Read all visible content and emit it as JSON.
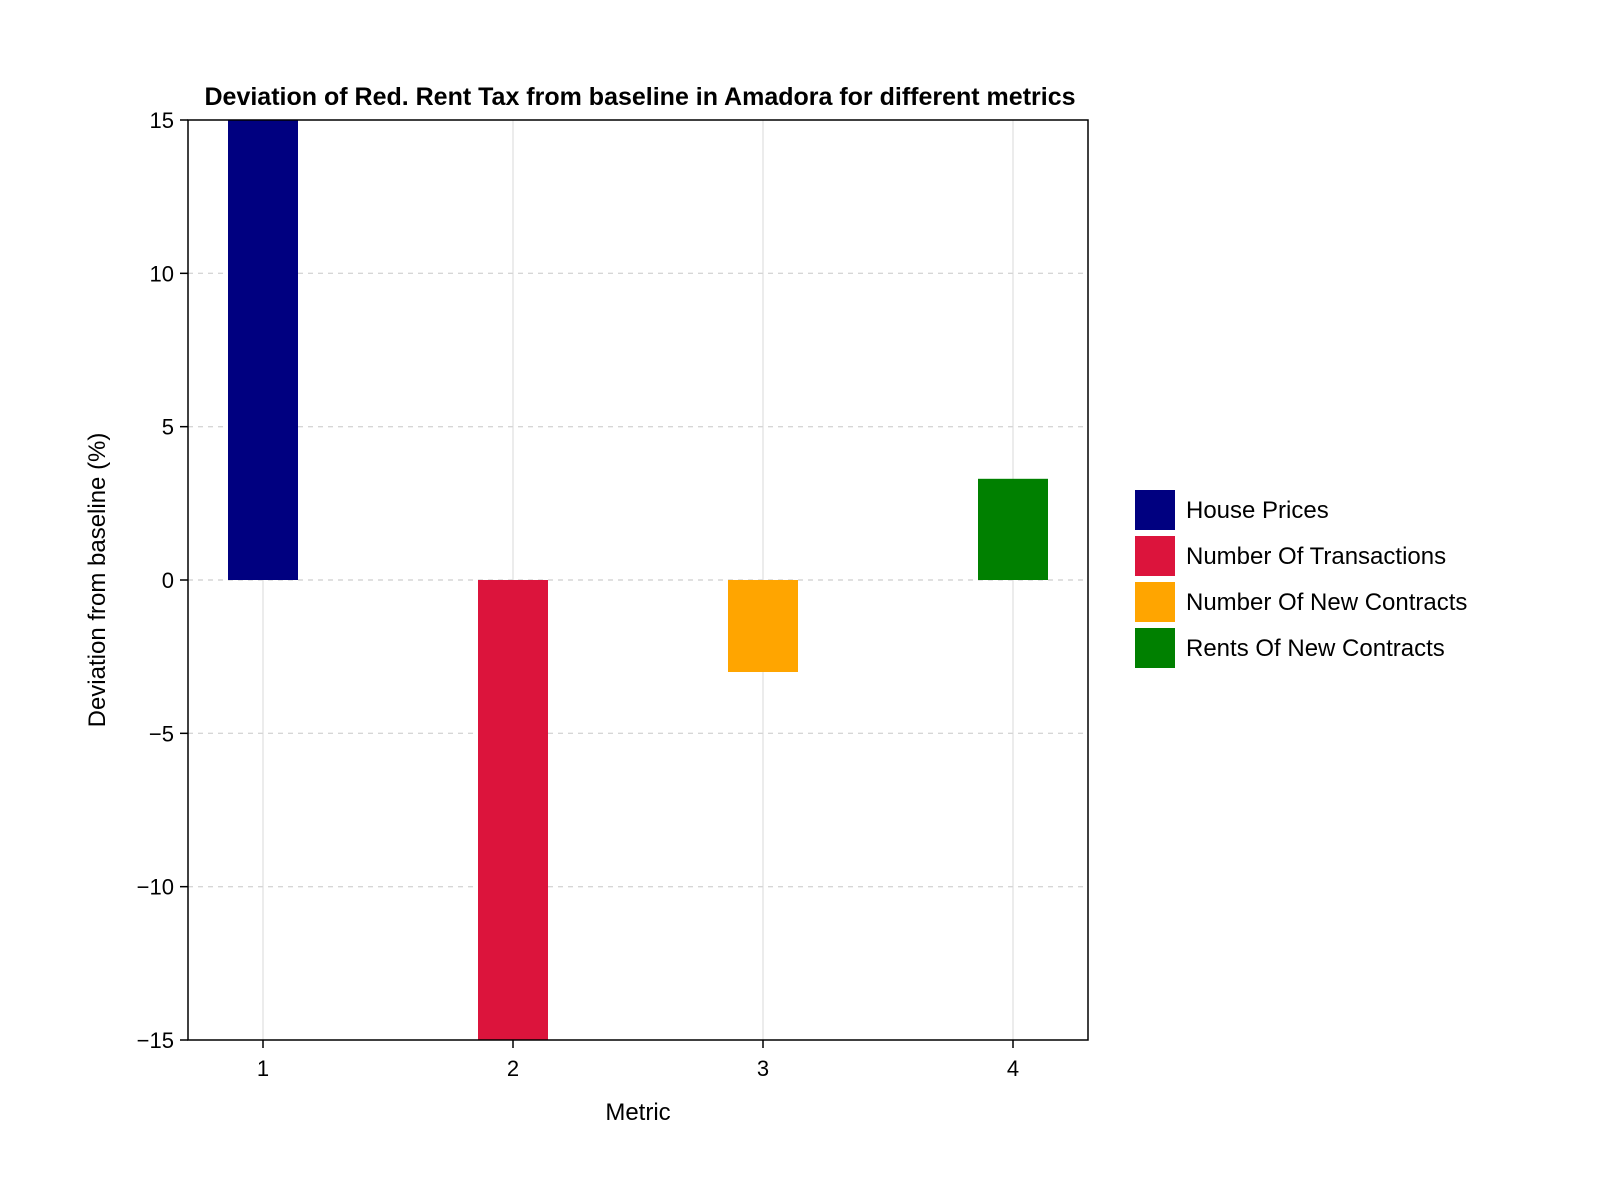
{
  "chart_data": {
    "type": "bar",
    "title": "Deviation of Red. Rent Tax from baseline in Amadora for different metrics",
    "xlabel": "Metric",
    "ylabel": "Deviation from baseline (%)",
    "x": [
      1,
      2,
      3,
      4
    ],
    "xticks": [
      "1",
      "2",
      "3",
      "4"
    ],
    "xlim": [
      0.7,
      4.3
    ],
    "ylim": [
      -15,
      15
    ],
    "yticks": [
      -15,
      -10,
      -5,
      0,
      5,
      10,
      15
    ],
    "ytick_labels": [
      "−15",
      "−10",
      "−5",
      "0",
      "5",
      "10",
      "15"
    ],
    "grid": true,
    "legend_position": "right",
    "series": [
      {
        "name": "House Prices",
        "x": 1,
        "value": 15,
        "color": "#000080"
      },
      {
        "name": "Number Of Transactions",
        "x": 2,
        "value": -15,
        "color": "#DC143C"
      },
      {
        "name": "Number Of New Contracts",
        "x": 3,
        "value": -3,
        "color": "#FFA500"
      },
      {
        "name": "Rents Of New Contracts",
        "x": 4,
        "value": 3.3,
        "color": "#008000"
      }
    ]
  }
}
